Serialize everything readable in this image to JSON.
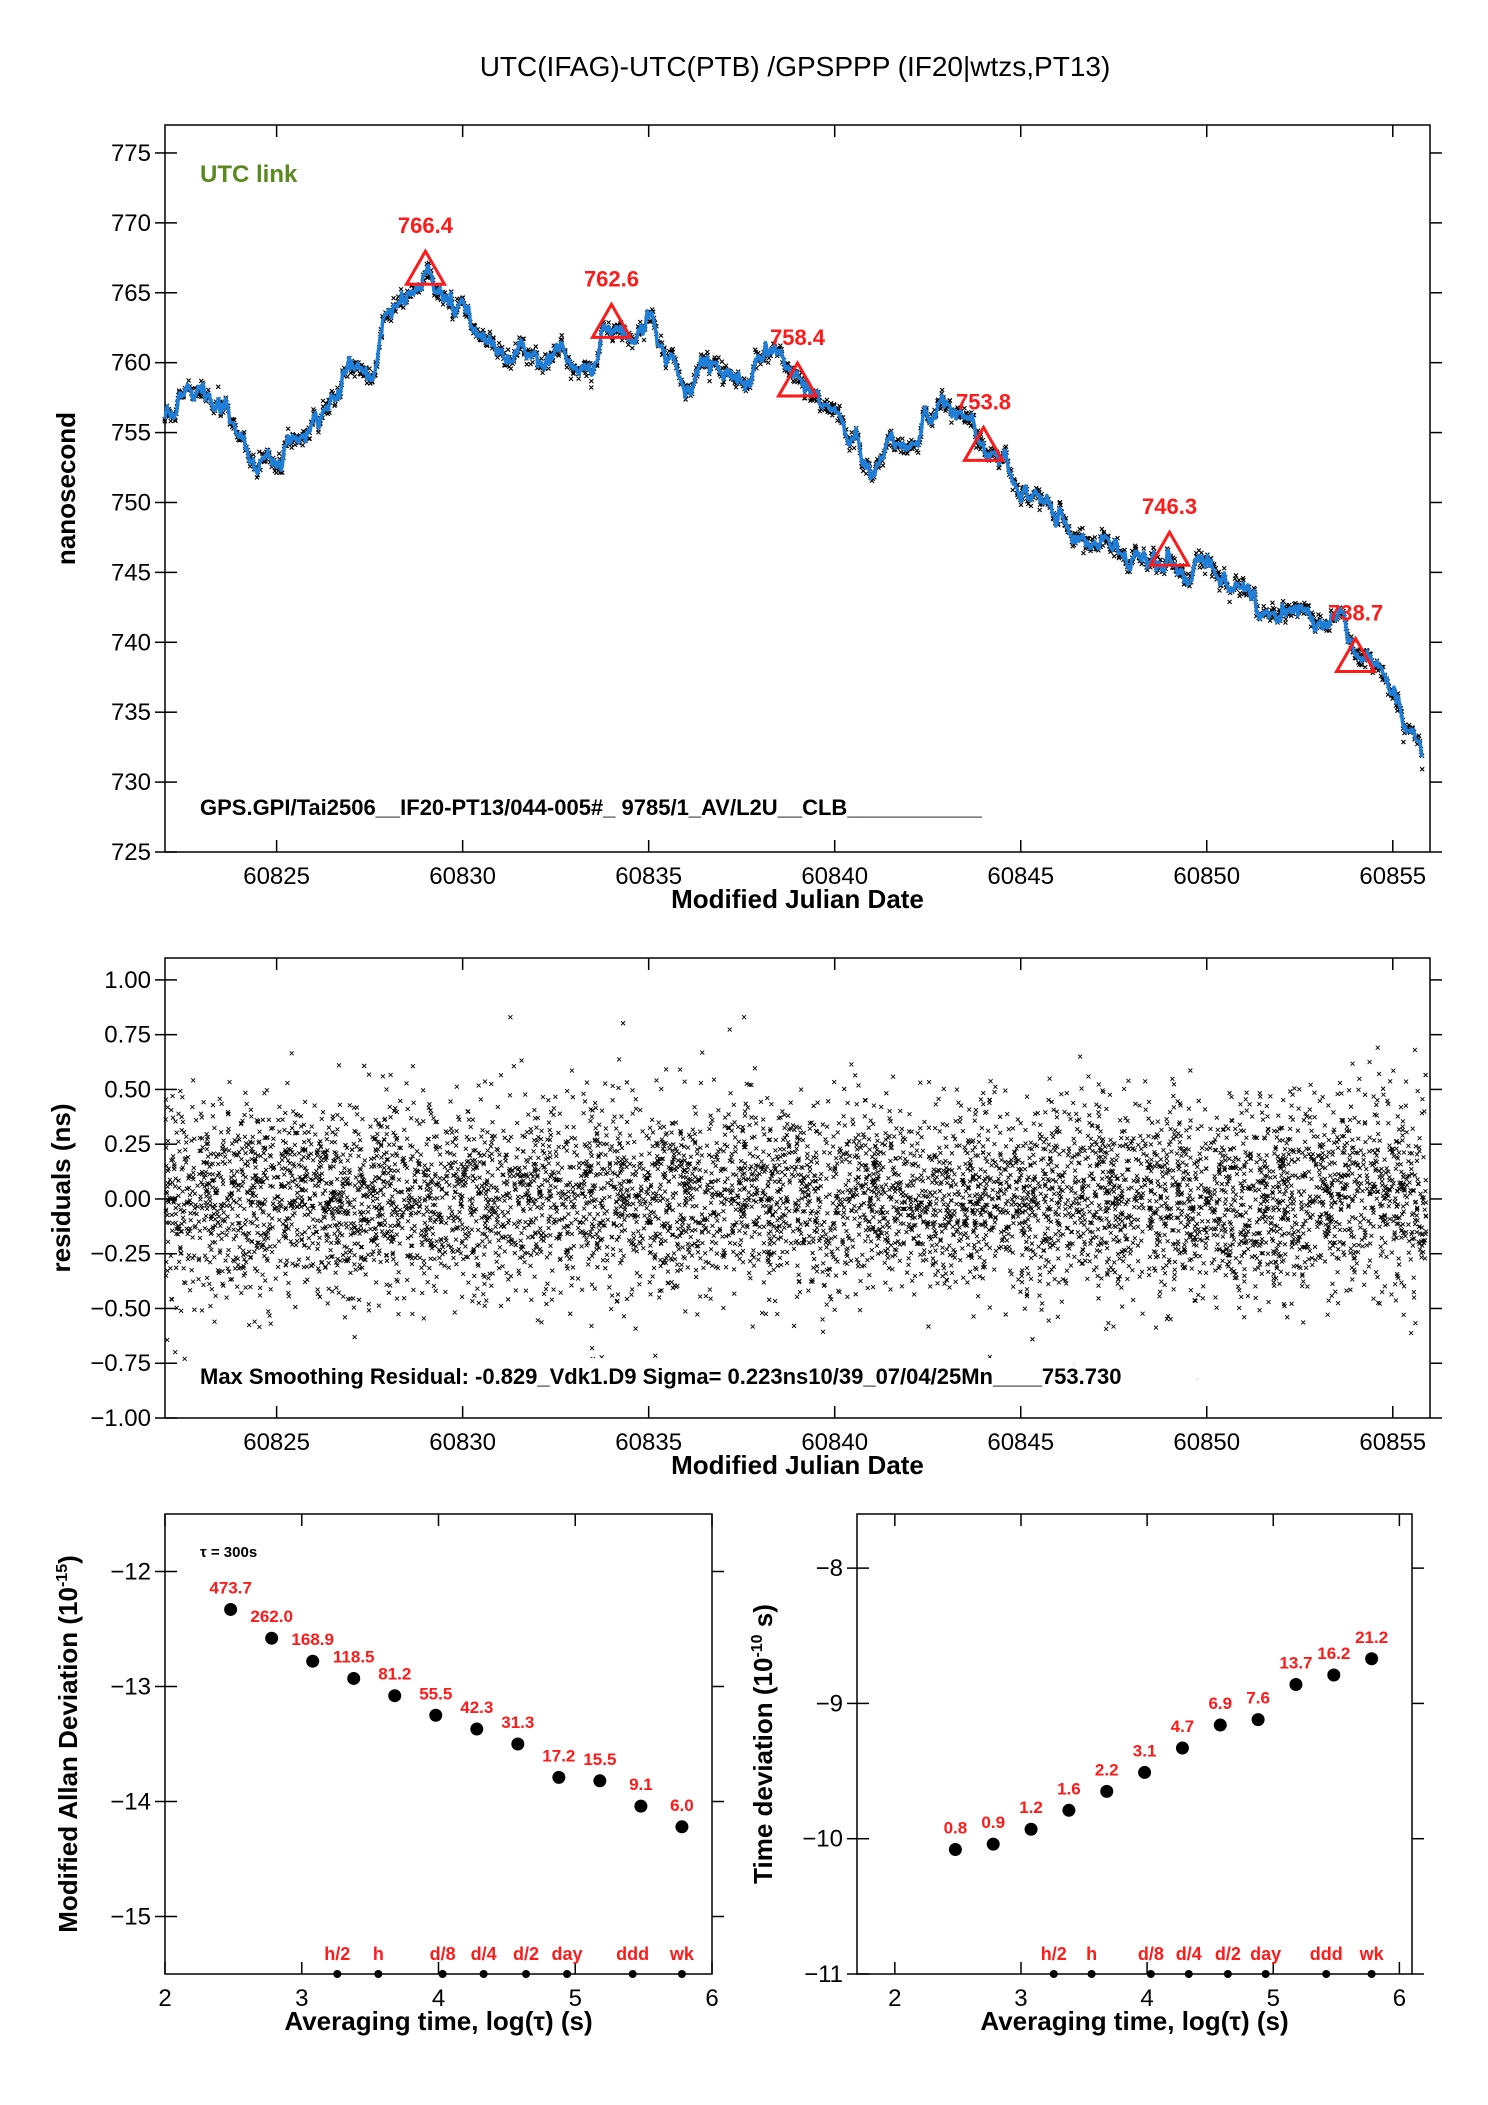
{
  "title": "UTC(IFAG)-UTC(PTB)  /GPSPPP  (IF20|wtzs,PT13)",
  "colors": {
    "fit": "#1f7fd8",
    "markers": "#ff1a1a",
    "points": "#000000",
    "label_green": "#5a8a1e"
  },
  "chart_data": [
    {
      "id": "main",
      "type": "line",
      "title": "",
      "xlabel": "Modified Julian Date",
      "ylabel": "nanosecond",
      "xlim": [
        60822,
        60856
      ],
      "ylim": [
        725,
        777
      ],
      "xticks": [
        60825,
        60830,
        60835,
        60840,
        60845,
        60850,
        60855
      ],
      "yticks": [
        725,
        730,
        735,
        740,
        745,
        750,
        755,
        760,
        765,
        770,
        775
      ],
      "corner_label": "UTC link",
      "footer": "GPS.GPI/Tai2506__IF20-PT13/044-005#_  9785/1_AV/L2U__CLB___________",
      "series": [
        {
          "style": "smoothed series (blue) over raw points (black x)",
          "x": [
            60822.0,
            60822.5,
            60823.0,
            60823.5,
            60824.0,
            60824.5,
            60825.0,
            60825.5,
            60826.0,
            60826.5,
            60827.0,
            60827.5,
            60828.0,
            60828.5,
            60829.0,
            60829.5,
            60830.0,
            60830.5,
            60831.0,
            60831.5,
            60832.0,
            60832.5,
            60833.0,
            60833.5,
            60834.0,
            60834.5,
            60835.0,
            60835.5,
            60836.0,
            60836.5,
            60837.0,
            60837.5,
            60838.0,
            60838.5,
            60839.0,
            60839.5,
            60840.0,
            60840.5,
            60841.0,
            60841.5,
            60842.0,
            60842.5,
            60843.0,
            60843.5,
            60844.0,
            60844.5,
            60845.0,
            60845.5,
            60846.0,
            60846.5,
            60847.0,
            60847.5,
            60848.0,
            60848.5,
            60849.0,
            60849.5,
            60850.0,
            60850.5,
            60851.0,
            60851.5,
            60852.0,
            60852.5,
            60853.0,
            60853.5,
            60854.0,
            60854.5,
            60855.0,
            60855.5,
            60855.8
          ],
          "y": [
            755.5,
            757.8,
            757.5,
            756.5,
            755.0,
            753.2,
            753.5,
            754.0,
            755.5,
            757.0,
            759.5,
            759.0,
            763.0,
            764.0,
            766.4,
            763.8,
            764.0,
            762.0,
            761.0,
            761.5,
            760.5,
            761.0,
            760.5,
            760.0,
            762.6,
            762.0,
            763.5,
            761.0,
            758.5,
            760.0,
            759.0,
            758.5,
            760.5,
            760.0,
            758.4,
            757.0,
            756.5,
            755.0,
            751.5,
            754.5,
            754.0,
            756.0,
            757.5,
            756.5,
            753.8,
            753.5,
            751.5,
            750.5,
            749.5,
            747.5,
            747.0,
            747.5,
            745.5,
            745.5,
            746.3,
            744.5,
            746.5,
            744.5,
            744.0,
            742.0,
            742.0,
            742.0,
            741.5,
            742.0,
            738.7,
            738.5,
            736.5,
            733.0,
            731.5
          ]
        }
      ],
      "markers": [
        {
          "x": 60829,
          "y": 766.4,
          "label": "766.4"
        },
        {
          "x": 60834,
          "y": 762.6,
          "label": "762.6"
        },
        {
          "x": 60839,
          "y": 758.4,
          "label": "758.4"
        },
        {
          "x": 60844,
          "y": 753.8,
          "label": "753.8"
        },
        {
          "x": 60849,
          "y": 746.3,
          "label": "746.3"
        },
        {
          "x": 60854,
          "y": 738.7,
          "label": "738.7"
        }
      ]
    },
    {
      "id": "residuals",
      "type": "scatter",
      "title": "",
      "xlabel": "Modified Julian Date",
      "ylabel": "residuals (ns)",
      "xlim": [
        60822,
        60856
      ],
      "ylim": [
        -1.0,
        1.1
      ],
      "xticks": [
        60825,
        60830,
        60835,
        60840,
        60845,
        60850,
        60855
      ],
      "yticks": [
        -1.0,
        -0.75,
        -0.5,
        -0.25,
        0.0,
        0.25,
        0.5,
        0.75,
        1.0
      ],
      "ytick_labels": [
        "−1.00",
        "−0.75",
        "−0.50",
        "−0.25",
        "0.00",
        "0.25",
        "0.50",
        "0.75",
        "1.00"
      ],
      "distribution": {
        "mean": 0.0,
        "sigma": 0.223,
        "min": -0.829,
        "max": 0.83,
        "points": 9785
      },
      "footer": "Max Smoothing Residual: -0.829_Vdk1.D9  Sigma= 0.223ns10/39_07/04/25Mn____753.730"
    },
    {
      "id": "mdev",
      "type": "scatter",
      "title": "",
      "xlabel": "Averaging time, log(τ) (s)",
      "ylabel": "Modified Allan Deviation (10",
      "ylabel_sup": "-15",
      "ylabel_end": ")",
      "xlim": [
        2,
        6
      ],
      "ylim": [
        -15.5,
        -11.5
      ],
      "xticks": [
        2,
        3,
        4,
        5,
        6
      ],
      "yticks": [
        -15,
        -14,
        -13,
        -12
      ],
      "ytick_labels": [
        "−15",
        "−14",
        "−13",
        "−12"
      ],
      "tau_note": "τ = 300s",
      "points": [
        {
          "x": 2.48,
          "y": -12.33,
          "label": "473.7"
        },
        {
          "x": 2.78,
          "y": -12.58,
          "label": "262.0"
        },
        {
          "x": 3.08,
          "y": -12.78,
          "label": "168.9"
        },
        {
          "x": 3.38,
          "y": -12.93,
          "label": "118.5"
        },
        {
          "x": 3.68,
          "y": -13.08,
          "label": "81.2"
        },
        {
          "x": 3.98,
          "y": -13.25,
          "label": "55.5"
        },
        {
          "x": 4.28,
          "y": -13.37,
          "label": "42.3"
        },
        {
          "x": 4.58,
          "y": -13.5,
          "label": "31.3"
        },
        {
          "x": 4.88,
          "y": -13.79,
          "label": "17.2"
        },
        {
          "x": 5.18,
          "y": -13.82,
          "label": "15.5"
        },
        {
          "x": 5.48,
          "y": -14.04,
          "label": "9.1"
        },
        {
          "x": 5.78,
          "y": -14.22,
          "label": "6.0"
        }
      ],
      "time_marks": [
        {
          "x": 3.26,
          "label": "h/2"
        },
        {
          "x": 3.56,
          "label": "h"
        },
        {
          "x": 4.03,
          "label": "d/8"
        },
        {
          "x": 4.33,
          "label": "d/4"
        },
        {
          "x": 4.64,
          "label": "d/2"
        },
        {
          "x": 4.94,
          "label": "day"
        },
        {
          "x": 5.42,
          "label": "ddd"
        },
        {
          "x": 5.78,
          "label": "wk"
        }
      ]
    },
    {
      "id": "tdev",
      "type": "scatter",
      "title": "",
      "xlabel": "Averaging time, log(τ) (s)",
      "ylabel": "Time deviation (10",
      "ylabel_sup": "-10",
      "ylabel_end": " s)",
      "xlim": [
        1.7,
        6.1
      ],
      "ylim": [
        -11.0,
        -7.6
      ],
      "xticks": [
        2,
        3,
        4,
        5,
        6
      ],
      "yticks": [
        -11,
        -10,
        -9,
        -8
      ],
      "ytick_labels": [
        "−11",
        "−10",
        "−9",
        "−8"
      ],
      "points": [
        {
          "x": 2.48,
          "y": -10.08,
          "label": "0.8"
        },
        {
          "x": 2.78,
          "y": -10.04,
          "label": "0.9"
        },
        {
          "x": 3.08,
          "y": -9.93,
          "label": "1.2"
        },
        {
          "x": 3.38,
          "y": -9.79,
          "label": "1.6"
        },
        {
          "x": 3.68,
          "y": -9.65,
          "label": "2.2"
        },
        {
          "x": 3.98,
          "y": -9.51,
          "label": "3.1"
        },
        {
          "x": 4.28,
          "y": -9.33,
          "label": "4.7"
        },
        {
          "x": 4.58,
          "y": -9.16,
          "label": "6.9"
        },
        {
          "x": 4.88,
          "y": -9.12,
          "label": "7.6"
        },
        {
          "x": 5.18,
          "y": -8.86,
          "label": "13.7"
        },
        {
          "x": 5.48,
          "y": -8.79,
          "label": "16.2"
        },
        {
          "x": 5.78,
          "y": -8.67,
          "label": "21.2"
        }
      ],
      "time_marks": [
        {
          "x": 3.26,
          "label": "h/2"
        },
        {
          "x": 3.56,
          "label": "h"
        },
        {
          "x": 4.03,
          "label": "d/8"
        },
        {
          "x": 4.33,
          "label": "d/4"
        },
        {
          "x": 4.64,
          "label": "d/2"
        },
        {
          "x": 4.94,
          "label": "day"
        },
        {
          "x": 5.42,
          "label": "ddd"
        },
        {
          "x": 5.78,
          "label": "wk"
        }
      ]
    }
  ]
}
